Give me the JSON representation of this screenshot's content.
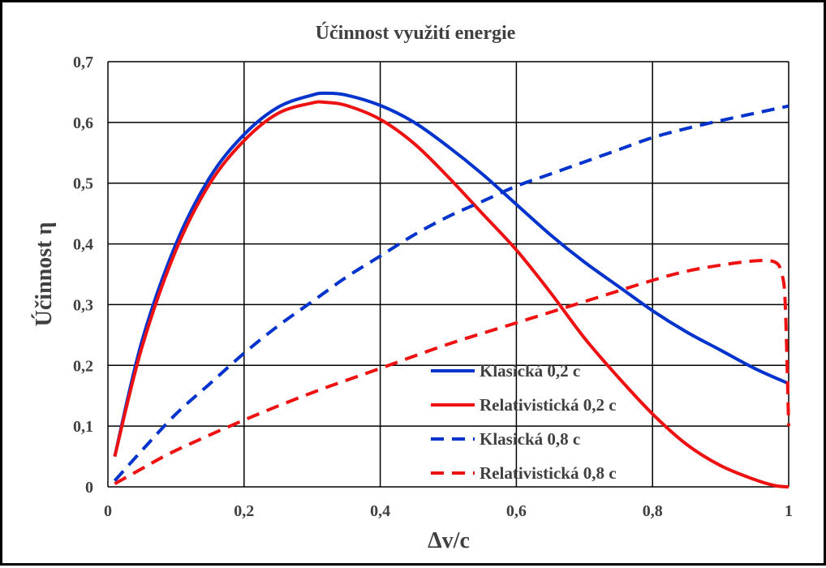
{
  "chart_data": {
    "type": "line",
    "title": "Účinnost využití energie",
    "xlabel": "Δv/c",
    "ylabel": "Účinnost η",
    "xlim": [
      0,
      1
    ],
    "ylim": [
      0,
      0.7
    ],
    "grid": true,
    "legend_position": "bottom-right",
    "x_ticks": [
      "0",
      "0,2",
      "0,4",
      "0,6",
      "0,8",
      "1"
    ],
    "y_ticks": [
      "0",
      "0,1",
      "0,2",
      "0,3",
      "0,4",
      "0,5",
      "0,6",
      "0,7"
    ],
    "series": [
      {
        "name": "Klasická 0,2 c",
        "color": "#0033cc",
        "style": "solid",
        "x": [
          0.01,
          0.05,
          0.1,
          0.15,
          0.2,
          0.25,
          0.3,
          0.32,
          0.35,
          0.4,
          0.45,
          0.5,
          0.55,
          0.6,
          0.65,
          0.7,
          0.75,
          0.8,
          0.85,
          0.9,
          0.95,
          1.0
        ],
        "y": [
          0.05,
          0.24,
          0.4,
          0.51,
          0.58,
          0.625,
          0.645,
          0.648,
          0.645,
          0.628,
          0.6,
          0.56,
          0.515,
          0.465,
          0.415,
          0.37,
          0.33,
          0.29,
          0.255,
          0.225,
          0.195,
          0.17
        ]
      },
      {
        "name": "Relativistická 0,2 c",
        "color": "#ee1111",
        "style": "solid",
        "x": [
          0.01,
          0.05,
          0.1,
          0.15,
          0.2,
          0.25,
          0.3,
          0.32,
          0.35,
          0.4,
          0.45,
          0.5,
          0.55,
          0.6,
          0.65,
          0.7,
          0.75,
          0.8,
          0.85,
          0.9,
          0.95,
          0.98,
          1.0
        ],
        "y": [
          0.05,
          0.23,
          0.39,
          0.5,
          0.57,
          0.615,
          0.632,
          0.633,
          0.628,
          0.605,
          0.565,
          0.51,
          0.45,
          0.39,
          0.32,
          0.245,
          0.18,
          0.12,
          0.07,
          0.035,
          0.012,
          0.002,
          0.0
        ]
      },
      {
        "name": "Klasická 0,8 c",
        "color": "#0033cc",
        "style": "dashed",
        "x": [
          0.01,
          0.05,
          0.1,
          0.15,
          0.2,
          0.25,
          0.3,
          0.35,
          0.4,
          0.45,
          0.5,
          0.55,
          0.6,
          0.65,
          0.7,
          0.75,
          0.8,
          0.85,
          0.9,
          0.95,
          1.0
        ],
        "y": [
          0.01,
          0.06,
          0.12,
          0.17,
          0.22,
          0.265,
          0.305,
          0.345,
          0.38,
          0.415,
          0.445,
          0.47,
          0.495,
          0.515,
          0.535,
          0.555,
          0.575,
          0.59,
          0.603,
          0.615,
          0.627
        ]
      },
      {
        "name": "Relativistická 0,8 c",
        "color": "#ee1111",
        "style": "dashed",
        "x": [
          0.01,
          0.05,
          0.1,
          0.2,
          0.3,
          0.4,
          0.5,
          0.6,
          0.7,
          0.8,
          0.85,
          0.9,
          0.95,
          0.98,
          0.99,
          0.995,
          1.0
        ],
        "y": [
          0.005,
          0.03,
          0.06,
          0.11,
          0.155,
          0.195,
          0.235,
          0.27,
          0.305,
          0.34,
          0.355,
          0.365,
          0.372,
          0.37,
          0.35,
          0.3,
          0.1
        ]
      }
    ]
  }
}
